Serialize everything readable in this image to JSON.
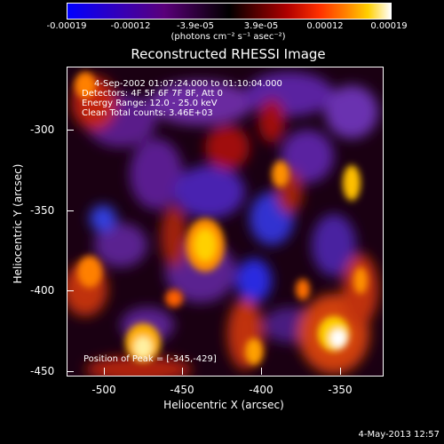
{
  "colorbar": {
    "ticks": [
      "-0.00019",
      "-0.00012",
      "-3.9e-05",
      "3.9e-05",
      "0.00012",
      "0.00019"
    ],
    "unit": "(photons cm⁻² s⁻¹ asec⁻²)"
  },
  "title": "Reconstructed RHESSI Image",
  "annotations": {
    "time": "4-Sep-2002 01:07:24.000 to 01:10:04.000",
    "detectors": "Detectors: 4F 5F 6F 7F 8F, Att 0",
    "energy": "Energy Range: 12.0 - 25.0 keV",
    "clean": "Clean     Total counts: 3.46E+03",
    "peak": "Position of Peak = [-345,-429]"
  },
  "axes": {
    "xlabel": "Heliocentric X (arcsec)",
    "ylabel": "Heliocentric Y (arcsec)",
    "xticks": [
      "-500",
      "-450",
      "-400",
      "-350"
    ],
    "yticks": [
      "-300",
      "-350",
      "-400",
      "-450"
    ]
  },
  "footer": "4-May-2013 12:57"
}
